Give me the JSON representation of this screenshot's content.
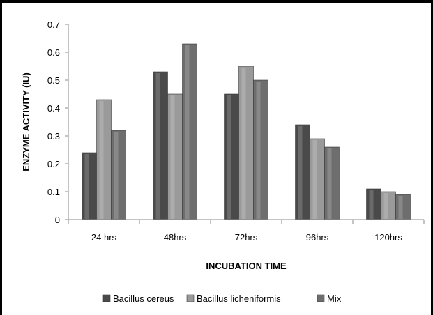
{
  "chart_data": {
    "type": "bar",
    "title": "",
    "xlabel": "INCUBATION TIME",
    "ylabel": "ENZYME ACTIVITY (IU)",
    "categories": [
      "24 hrs",
      "48hrs",
      "72hrs",
      "96hrs",
      "120hrs"
    ],
    "ylim": [
      0,
      0.7
    ],
    "yticks": [
      0,
      0.1,
      0.2,
      0.3,
      0.4,
      0.5,
      0.6,
      0.7
    ],
    "ytick_labels": [
      "0",
      "0.1",
      "0.2",
      "0.3",
      "0.4",
      "0.5",
      "0.6",
      "0.7"
    ],
    "grid": false,
    "legend_position": "bottom",
    "series": [
      {
        "name": "Bacillus cereus",
        "values": [
          0.24,
          0.53,
          0.45,
          0.34,
          0.11
        ],
        "color": "#4a4a4a"
      },
      {
        "name": "Bacillus licheniformis",
        "values": [
          0.43,
          0.45,
          0.55,
          0.29,
          0.1
        ],
        "color": "#9a9a9a"
      },
      {
        "name": "Mix",
        "values": [
          0.32,
          0.63,
          0.5,
          0.26,
          0.09
        ],
        "color": "#6e6e6e"
      }
    ]
  }
}
